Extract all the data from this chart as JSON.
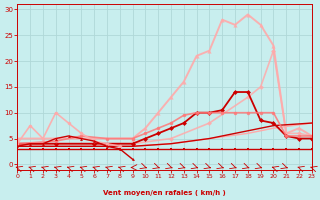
{
  "xlabel": "Vent moyen/en rafales ( km/h )",
  "xlim": [
    0,
    23
  ],
  "ylim": [
    -1,
    31
  ],
  "xticks": [
    0,
    1,
    2,
    3,
    4,
    5,
    6,
    7,
    8,
    9,
    10,
    11,
    12,
    13,
    14,
    15,
    16,
    17,
    18,
    19,
    20,
    21,
    22,
    23
  ],
  "yticks": [
    0,
    5,
    10,
    15,
    20,
    25,
    30
  ],
  "bg_color": "#c8eeee",
  "grid_color": "#b0d8d8",
  "series": [
    {
      "comment": "flat dark red line near y=3, with square markers",
      "x": [
        0,
        1,
        2,
        3,
        4,
        5,
        6,
        7,
        8,
        9,
        10,
        11,
        12,
        13,
        14,
        15,
        16,
        17,
        18,
        19,
        20,
        21,
        22,
        23
      ],
      "y": [
        3,
        3,
        3,
        3,
        3,
        3,
        3,
        3,
        3,
        3,
        3,
        3,
        3,
        3,
        3,
        3,
        3,
        3,
        3,
        3,
        3,
        3,
        3,
        3
      ],
      "color": "#cc0000",
      "lw": 1.0,
      "marker": "s",
      "ms": 2.0,
      "alpha": 1.0
    },
    {
      "comment": "diagonal light pink line - lower slope, from ~4 to ~8",
      "x": [
        0,
        3,
        6,
        9,
        12,
        15,
        18,
        20,
        23
      ],
      "y": [
        3.5,
        3.5,
        3.5,
        3.5,
        4,
        5,
        6,
        7,
        8
      ],
      "color": "#ffaaaa",
      "lw": 1.0,
      "marker": null,
      "ms": 0,
      "alpha": 1.0
    },
    {
      "comment": "diagonal light pink - from ~4 to ~22, steeper slope",
      "x": [
        0,
        3,
        6,
        9,
        12,
        15,
        18,
        19,
        20,
        21,
        22,
        23
      ],
      "y": [
        4,
        4,
        4,
        4,
        5,
        8,
        13,
        15,
        22,
        6,
        6,
        5.5
      ],
      "color": "#ffaaaa",
      "lw": 1.2,
      "marker": "D",
      "ms": 2.5,
      "alpha": 0.85
    },
    {
      "comment": "steepest light pink line - from ~5 to ~29, with triangle markers",
      "x": [
        0,
        3,
        6,
        9,
        10,
        11,
        12,
        13,
        14,
        15,
        16,
        17,
        18,
        19,
        20,
        21,
        22,
        23
      ],
      "y": [
        5,
        5,
        5,
        5,
        7,
        10,
        13,
        16,
        21,
        22,
        28,
        27,
        29,
        27,
        23,
        6,
        7,
        5.5
      ],
      "color": "#ffaaaa",
      "lw": 1.4,
      "marker": "^",
      "ms": 3.0,
      "alpha": 0.9
    },
    {
      "comment": "dark red diagonal low slope from ~3 to ~8",
      "x": [
        0,
        3,
        6,
        9,
        12,
        15,
        18,
        20,
        23
      ],
      "y": [
        3.5,
        3.5,
        3.5,
        3.5,
        4,
        5,
        6.5,
        7.5,
        8
      ],
      "color": "#cc0000",
      "lw": 1.0,
      "marker": null,
      "ms": 0,
      "alpha": 1.0
    },
    {
      "comment": "dark red medium slope from ~4 to ~12 then drops",
      "x": [
        0,
        3,
        6,
        9,
        10,
        11,
        12,
        13,
        14,
        15,
        16,
        17,
        18,
        19,
        20,
        21,
        22,
        23
      ],
      "y": [
        4,
        4,
        4,
        4,
        5,
        6,
        7,
        8,
        10,
        10,
        10.5,
        14,
        14,
        8.5,
        8,
        5.5,
        5,
        5
      ],
      "color": "#cc0000",
      "lw": 1.3,
      "marker": "D",
      "ms": 2.5,
      "alpha": 1.0
    },
    {
      "comment": "medium pink diagonal line with circles from 4 to 22",
      "x": [
        0,
        3,
        5,
        7,
        9,
        10,
        11,
        12,
        13,
        14,
        15,
        16,
        17,
        18,
        19,
        20,
        21,
        22,
        23
      ],
      "y": [
        4,
        4.5,
        5.5,
        5,
        5,
        6,
        7,
        8,
        9.5,
        10,
        10,
        10,
        10,
        10,
        10,
        10,
        5.5,
        5.5,
        5.5
      ],
      "color": "#ff7777",
      "lw": 1.2,
      "marker": "o",
      "ms": 2.5,
      "alpha": 0.85
    },
    {
      "comment": "left-side peak lines - pink with crossings at low x",
      "x": [
        0,
        1,
        2,
        3,
        4,
        5,
        6,
        7,
        8
      ],
      "y": [
        4,
        7.5,
        5,
        10,
        8,
        6,
        4.5,
        4,
        3.5
      ],
      "color": "#ffaaaa",
      "lw": 1.2,
      "marker": "o",
      "ms": 2.5,
      "alpha": 0.9
    },
    {
      "comment": "dark red triangle line on left with peak at x=3",
      "x": [
        0,
        1,
        2,
        3,
        4,
        5,
        6,
        7,
        8,
        9
      ],
      "y": [
        3.5,
        4,
        4,
        5,
        5.5,
        5,
        4.5,
        3.5,
        3,
        1
      ],
      "color": "#cc0000",
      "lw": 1.0,
      "marker": "^",
      "ms": 2.0,
      "alpha": 1.0
    }
  ],
  "wind_arrows": {
    "x": [
      0,
      1,
      2,
      3,
      4,
      5,
      6,
      7,
      8,
      9,
      10,
      11,
      12,
      13,
      14,
      15,
      16,
      17,
      18,
      19,
      20,
      21,
      22,
      23
    ],
    "angles": [
      225,
      225,
      225,
      225,
      225,
      225,
      225,
      225,
      225,
      270,
      45,
      45,
      45,
      45,
      45,
      45,
      45,
      45,
      45,
      45,
      225,
      45,
      225,
      225
    ]
  }
}
